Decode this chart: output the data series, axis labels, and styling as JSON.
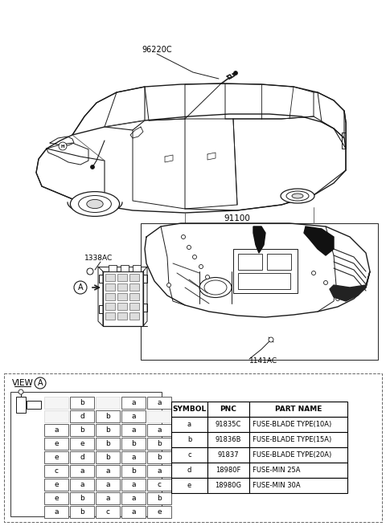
{
  "background_color": "#ffffff",
  "part_96220C": "96220C",
  "part_91100": "91100",
  "part_1338AC": "1338AC",
  "part_1141AC": "1141AC",
  "view_label": "VIEW",
  "circle_label": "A",
  "table_headers": [
    "SYMBOL",
    "PNC",
    "PART NAME"
  ],
  "table_rows": [
    [
      "a",
      "91835C",
      "FUSE-BLADE TYPE(10A)"
    ],
    [
      "b",
      "91836B",
      "FUSE-BLADE TYPE(15A)"
    ],
    [
      "c",
      "91837",
      "FUSE-BLADE TYPE(20A)"
    ],
    [
      "d",
      "18980F",
      "FUSE-MIN 25A"
    ],
    [
      "e",
      "18980G",
      "FUSE-MIN 30A"
    ]
  ],
  "grid_row1": [
    null,
    "b",
    null,
    "a",
    "a"
  ],
  "grid_row2": [
    null,
    "d",
    "b",
    "a",
    null
  ],
  "grid_row3": [
    "a",
    "b",
    "b",
    "a",
    "a"
  ],
  "grid_row4": [
    "e",
    "e",
    "b",
    "b",
    "b"
  ],
  "grid_row5": [
    "e",
    "d",
    "b",
    "a",
    "b"
  ],
  "grid_row6": [
    "c",
    "a",
    "a",
    "b",
    "a"
  ],
  "grid_row7": [
    "e",
    "a",
    "a",
    "a",
    "c"
  ],
  "grid_row8": [
    "e",
    "b",
    "a",
    "a",
    "b"
  ],
  "grid_row9": [
    "a",
    "b",
    "c",
    "a",
    "e"
  ],
  "lc": "#1a1a1a",
  "tc": "#000000"
}
